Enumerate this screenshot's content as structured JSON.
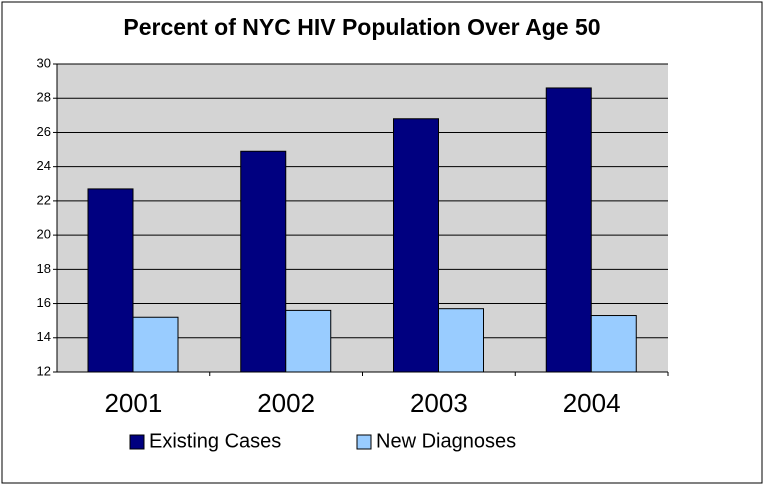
{
  "chart_data": {
    "type": "bar",
    "title": "Percent of NYC HIV Population Over Age 50",
    "categories": [
      "2001",
      "2002",
      "2003",
      "2004"
    ],
    "series": [
      {
        "name": "Existing Cases",
        "color": "#000080",
        "values": [
          22.7,
          24.9,
          26.8,
          28.6
        ]
      },
      {
        "name": "New Diagnoses",
        "color": "#99ccff",
        "values": [
          15.2,
          15.6,
          15.7,
          15.3
        ]
      }
    ],
    "ylim": [
      12,
      30
    ],
    "yticks": [
      12,
      14,
      16,
      18,
      20,
      22,
      24,
      26,
      28,
      30
    ],
    "grid": true
  }
}
